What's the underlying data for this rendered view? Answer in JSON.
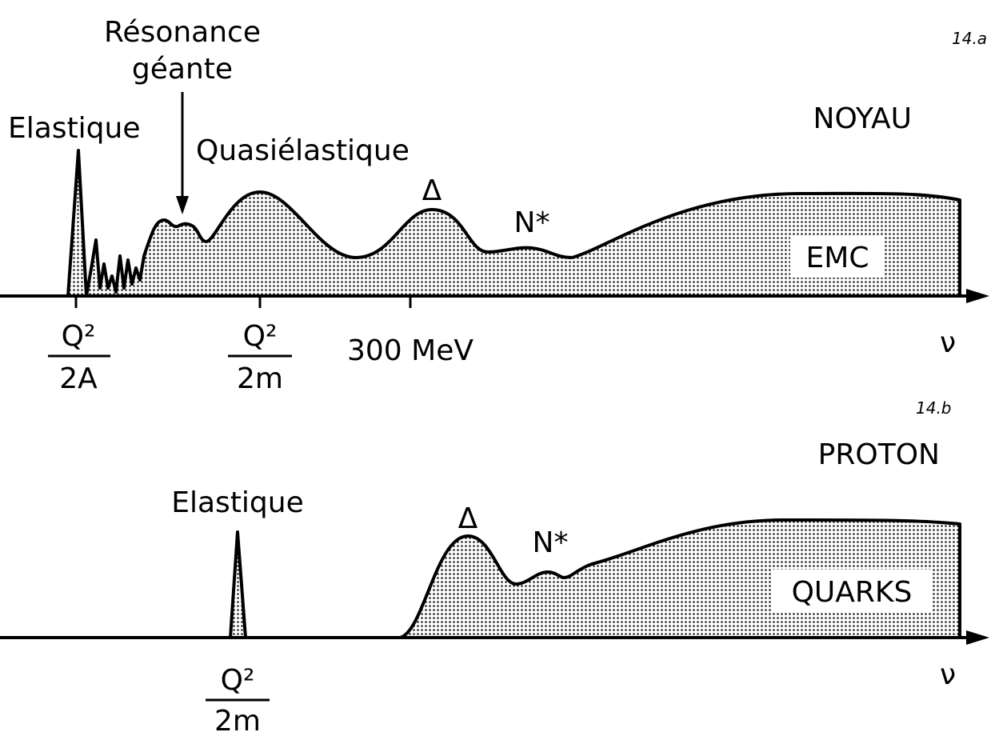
{
  "panel_a": {
    "label": "14.a",
    "title": "NOYAU",
    "annotations": {
      "elastic": "Elastique",
      "giant_resonance": [
        "Résonance",
        "géante"
      ],
      "quasielastic": "Quasiélastique",
      "delta": "Δ",
      "n_star": "N*",
      "emc": "EMC"
    },
    "ticks": [
      {
        "numerator": "Q²",
        "denominator": "2A"
      },
      {
        "numerator": "Q²",
        "denominator": "2m"
      },
      "300 MeV"
    ],
    "axis_label": "ν"
  },
  "panel_b": {
    "label": "14.b",
    "title": "PROTON",
    "annotations": {
      "elastic": "Elastique",
      "delta": "Δ",
      "n_star": "N*",
      "quarks": "QUARKS"
    },
    "ticks": [
      {
        "numerator": "Q²",
        "denominator": "2m"
      }
    ],
    "axis_label": "ν"
  }
}
